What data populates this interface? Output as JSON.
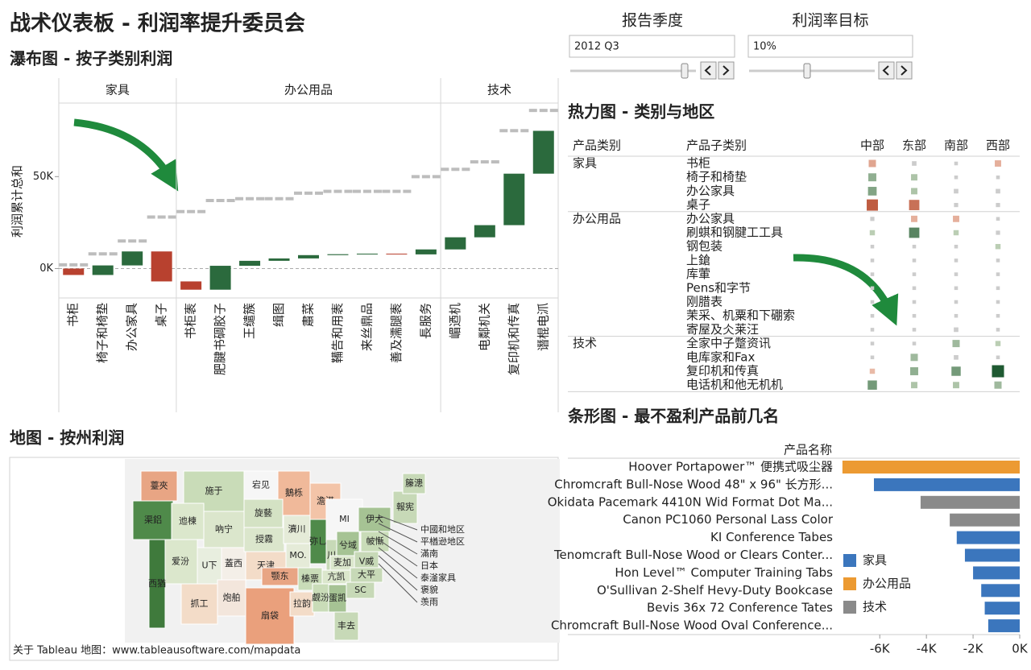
{
  "title": "战术仪表板 - 利润率提升委员会",
  "controls": [
    {
      "label": "报告季度",
      "value": "2012 Q3"
    },
    {
      "label": "利润率目标",
      "value": "10%"
    }
  ],
  "chart_data": [
    {
      "type": "waterfall",
      "title": "瀑布图 - 按子类别利润",
      "y_label": "利润累计总和",
      "groups": [
        {
          "name": "家具",
          "categories": [
            "书柜",
            "椅子和椅垫",
            "办公家具",
            "桌子"
          ],
          "values": [
            -3500,
            5200,
            7600,
            -16300
          ],
          "targets": [
            2000,
            8000,
            15000,
            28000
          ]
        },
        {
          "name": "办公用品",
          "categories": [
            "书柜袠",
            "肥腱书碉胶子",
            "王缱簇",
            "缉图",
            "肅菜",
            "鞴告和用袠",
            "来丝鼎品",
            "善及濡腿袠",
            "長服务"
          ],
          "values": [
            -4500,
            13000,
            2700,
            1300,
            1800,
            500,
            300,
            -400,
            2700
          ],
          "targets": [
            31000,
            37000,
            38000,
            38000,
            41000,
            42000,
            42000,
            42000,
            50000
          ]
        },
        {
          "name": "技术",
          "categories": [
            "嵋迺机",
            "电鄰机关",
            "复印机和传真",
            "谮棍电沠"
          ],
          "values": [
            6600,
            6600,
            28000,
            23300
          ],
          "targets": [
            54000,
            58000,
            75000,
            86000
          ]
        }
      ],
      "ylim": [
        -16000,
        90000
      ],
      "yticks": [
        {
          "value": 0,
          "label": "0K"
        },
        {
          "value": 50000,
          "label": "50K"
        }
      ],
      "positive_color": "#2b6a3d",
      "negative_color": "#b8412f",
      "target_color": "#bdbdbd"
    },
    {
      "type": "heatmap",
      "title": "热力图 - 类别与地区",
      "row_headers": [
        "产品类别",
        "产品子类别"
      ],
      "columns": [
        "中部",
        "东部",
        "南部",
        "西部"
      ],
      "groups": [
        {
          "name": "家具",
          "rows": [
            "书柜",
            "椅子和椅垫",
            "办公家具",
            "桌子"
          ],
          "values": [
            [
              -1.5,
              0.3,
              0.1,
              -1
            ],
            [
              2,
              1,
              0.1,
              0.1
            ],
            [
              2.5,
              1,
              0.3,
              0.3
            ],
            [
              -5,
              -4,
              0.2,
              0.2
            ]
          ]
        },
        {
          "name": "办公用品",
          "rows": [
            "办公家具",
            "刷蜞和钢腱工工具",
            "钢包装",
            "上鎗",
            "库葷",
            "Pens和字节",
            "刚腊表",
            "茉采、机粟和下硼索",
            "寄屋及仌莱汪"
          ],
          "values": [
            [
              0.2,
              -1,
              -1,
              0.1
            ],
            [
              0.5,
              4,
              0.5,
              0.2
            ],
            [
              0.1,
              0.1,
              0.1,
              0.5
            ],
            [
              0.1,
              0.1,
              0.1,
              0.1
            ],
            [
              0.1,
              0.1,
              0.1,
              0.1
            ],
            [
              0.1,
              0.1,
              0.1,
              0.1
            ],
            [
              0.1,
              0.1,
              0.1,
              0.1
            ],
            [
              0.1,
              0.1,
              0.1,
              0.1
            ],
            [
              0.1,
              0.1,
              0.3,
              0.1
            ]
          ]
        },
        {
          "name": "技术",
          "rows": [
            "全家中子蹩资讯",
            "电库家和Fax",
            "复印机和传真",
            "电话机和他无机机"
          ],
          "values": [
            [
              0.1,
              0.1,
              1.5,
              0.5
            ],
            [
              0.1,
              1.5,
              0.3,
              0.1
            ],
            [
              -0.5,
              2,
              3,
              6
            ],
            [
              3,
              1,
              1,
              1.5
            ]
          ]
        }
      ],
      "positive_color": "#1f5a32",
      "negative_color": "#b5472a",
      "neutral_color": "#cccccc"
    },
    {
      "type": "bar",
      "orientation": "horizontal",
      "title": "条形图 - 最不盈利产品前几名",
      "y_label": "产品名称",
      "categories": [
        "Hoover Portapower™ 便携式吸尘器",
        "Chromcraft Bull-Nose Wood 48\" x 96\" 长方形...",
        "Okidata Pacemark 4410N Wid Format Dot Ma...",
        "Canon PC1060 Personal Lass Color",
        "KI Conference Tabes",
        "Tenomcraft Bull-Nose Wood or Clears Conter...",
        "Hon Level™ Computer Training Tabs",
        "O'Sullivan 2-Shelf Hevy-Duty Bookcase",
        "Bevis 36x 72 Conference Tates",
        "Chromcraft Bull-Nose Wood Oval Conference..."
      ],
      "values": [
        -7600,
        -6250,
        -4250,
        -3000,
        -2700,
        -2350,
        -2000,
        -1650,
        -1500,
        -1350
      ],
      "product_category": [
        "办公用品",
        "家具",
        "技术",
        "技术",
        "家具",
        "家具",
        "家具",
        "家具",
        "家具",
        "家具"
      ],
      "series": [
        {
          "name": "家具",
          "color": "#3b76bd"
        },
        {
          "name": "办公用品",
          "color": "#ec9a32"
        },
        {
          "name": "技术",
          "color": "#8a8a8a"
        }
      ],
      "xlim": [
        -7700,
        0
      ],
      "xticks": [
        {
          "value": -6000,
          "label": "-6K"
        },
        {
          "value": -4000,
          "label": "-4K"
        },
        {
          "value": -2000,
          "label": "-2K"
        },
        {
          "value": 0,
          "label": "0K"
        }
      ]
    }
  ],
  "map": {
    "title": "地图 - 按州利润",
    "regions": [
      {
        "label": "薹夾",
        "color": "#e8a584"
      },
      {
        "label": "渠鋁",
        "color": "#4f8a4a"
      },
      {
        "label": "施于",
        "color": "#c9dcb8"
      },
      {
        "label": "宕见",
        "color": "#f6f6f6"
      },
      {
        "label": "鵝栎",
        "color": "#f0b99a"
      },
      {
        "label": "迆楝",
        "color": "#dbe7cc"
      },
      {
        "label": "吶宁",
        "color": "#dbe6cc"
      },
      {
        "label": "旋藝",
        "color": "#d4e2c4"
      },
      {
        "label": "澹港",
        "color": "#f3c4a8"
      },
      {
        "label": "MI",
        "color": "#f6f6f6"
      },
      {
        "label": "爱汾",
        "color": "#dbe7cc"
      },
      {
        "label": "U下",
        "color": "#e8eedf"
      },
      {
        "label": "蓋西",
        "color": "#f4efe8"
      },
      {
        "label": "授霧",
        "color": "#dbe6cc"
      },
      {
        "label": "瀆川",
        "color": "#e5ebd8"
      },
      {
        "label": "天津",
        "color": "#f3dcc8"
      },
      {
        "label": "MO.",
        "color": "#e5ebd8"
      },
      {
        "label": "弥乚",
        "color": "#4f8a4a"
      },
      {
        "label": "川",
        "color": "#c7d9b7"
      },
      {
        "label": "兮域",
        "color": "#a6c394"
      },
      {
        "label": "帔慚",
        "color": "#c9dcb8"
      },
      {
        "label": "伊大",
        "color": "#a6c394"
      },
      {
        "label": "報宪",
        "color": "#c7d9b7"
      },
      {
        "label": "籘漶",
        "color": "#c7d9b7"
      },
      {
        "label": "西猶",
        "color": "#3f7a3c"
      },
      {
        "label": "抓工",
        "color": "#f3dcc8"
      },
      {
        "label": "炮舶",
        "color": "#f3e6dc"
      },
      {
        "label": "扇袋",
        "color": "#eaa07c"
      },
      {
        "label": "颚东",
        "color": "#e8a584"
      },
      {
        "label": "榛票",
        "color": "#c9dcb8"
      },
      {
        "label": "拉韵",
        "color": "#f3dcc8"
      },
      {
        "label": "觑汾",
        "color": "#c9dcb8"
      },
      {
        "label": "麦加",
        "color": "#dbe7cc"
      },
      {
        "label": "亢凯",
        "color": "#dbe7cc"
      },
      {
        "label": "V威",
        "color": "#c7d9b7"
      },
      {
        "label": "大平",
        "color": "#c7d9b7"
      },
      {
        "label": "SC",
        "color": "#c7d9b7"
      },
      {
        "label": "蛋凯",
        "color": "#a6c394"
      },
      {
        "label": "丰去",
        "color": "#c7d9b7"
      }
    ],
    "callouts": [
      "中國和地区",
      "平楢逊地区",
      "滿南",
      "日本",
      "泰滏家具",
      "褒貌",
      "羡雨"
    ],
    "footer": "关于 Tableau 地图：www.tableausoftware.com/mapdata"
  }
}
